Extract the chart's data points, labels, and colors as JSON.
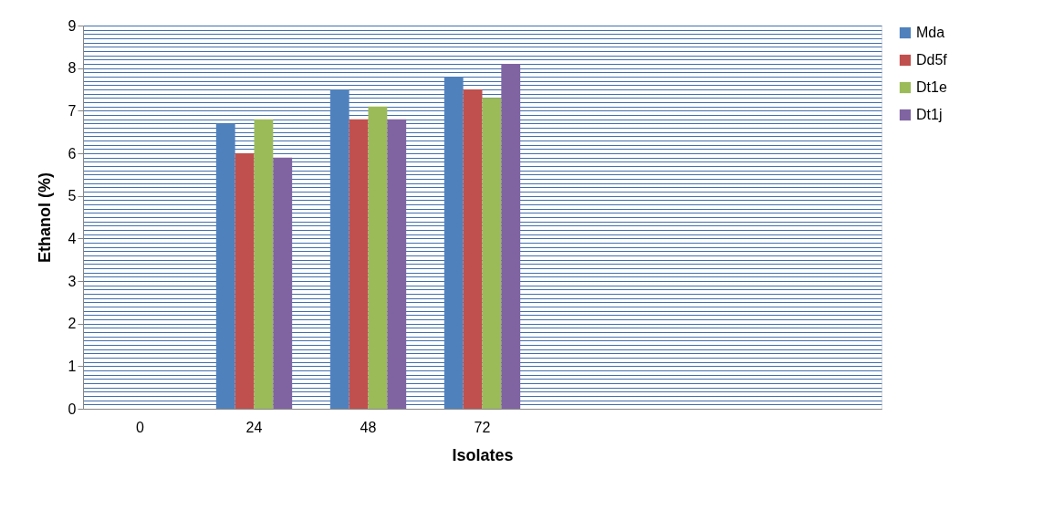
{
  "chart_data": {
    "type": "bar",
    "xlabel": "Isolates",
    "ylabel": "Ethanol (%)",
    "categories": [
      "0",
      "24",
      "48",
      "72",
      null,
      null,
      null
    ],
    "series": [
      {
        "name": "Mda",
        "color": "#4f81bd",
        "values": [
          0,
          6.7,
          7.5,
          7.8,
          null,
          null,
          null
        ]
      },
      {
        "name": "Dd5f",
        "color": "#c0504d",
        "values": [
          0,
          6.0,
          6.8,
          7.5,
          null,
          null,
          null
        ]
      },
      {
        "name": "Dt1e",
        "color": "#9bbb59",
        "values": [
          0,
          6.8,
          7.1,
          7.3,
          null,
          null,
          null
        ]
      },
      {
        "name": "Dt1j",
        "color": "#8064a2",
        "values": [
          0,
          5.9,
          6.8,
          8.1,
          null,
          null,
          null
        ]
      }
    ],
    "ylim": [
      0,
      9
    ],
    "yticks": [
      0,
      1,
      2,
      3,
      4,
      5,
      6,
      7,
      8,
      9
    ],
    "grid": "y",
    "legend": "right"
  }
}
